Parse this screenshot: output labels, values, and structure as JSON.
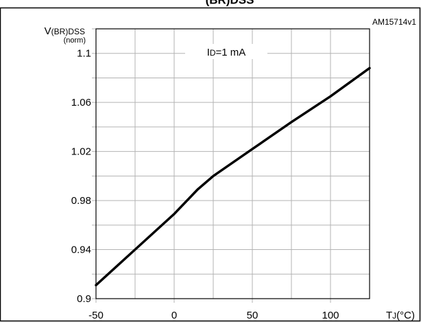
{
  "figure": {
    "top_caption": "(BR)DSS",
    "code": "AM15714v1"
  },
  "chart_data": {
    "type": "line",
    "title": "",
    "xlabel": {
      "main": "T",
      "sub": "J",
      "unit": "(°C)"
    },
    "ylabel": {
      "main": "V",
      "sub": "(BR)DSS",
      "sub2": "(norm)"
    },
    "annotation": {
      "main": "I",
      "sub": "D",
      "rest": "=1 mA"
    },
    "xlim": [
      -50,
      125
    ],
    "ylim": [
      0.9,
      1.12
    ],
    "x_ticks": [
      -50,
      0,
      50,
      100
    ],
    "x_tick_labels": [
      "-50",
      "0",
      "50",
      "100"
    ],
    "y_ticks": [
      0.9,
      0.94,
      0.98,
      1.02,
      1.06,
      1.1
    ],
    "y_tick_labels": [
      "0.9",
      "0.94",
      "0.98",
      "1.02",
      "1.06",
      "1.1"
    ],
    "x_grid_step": 25,
    "y_grid_step": 0.02,
    "grid": true,
    "series": [
      {
        "x": [
          -50,
          -25,
          0,
          15,
          25,
          50,
          75,
          100,
          125
        ],
        "y": [
          0.911,
          0.94,
          0.969,
          0.989,
          1.0,
          1.022,
          1.044,
          1.065,
          1.088
        ]
      }
    ]
  }
}
